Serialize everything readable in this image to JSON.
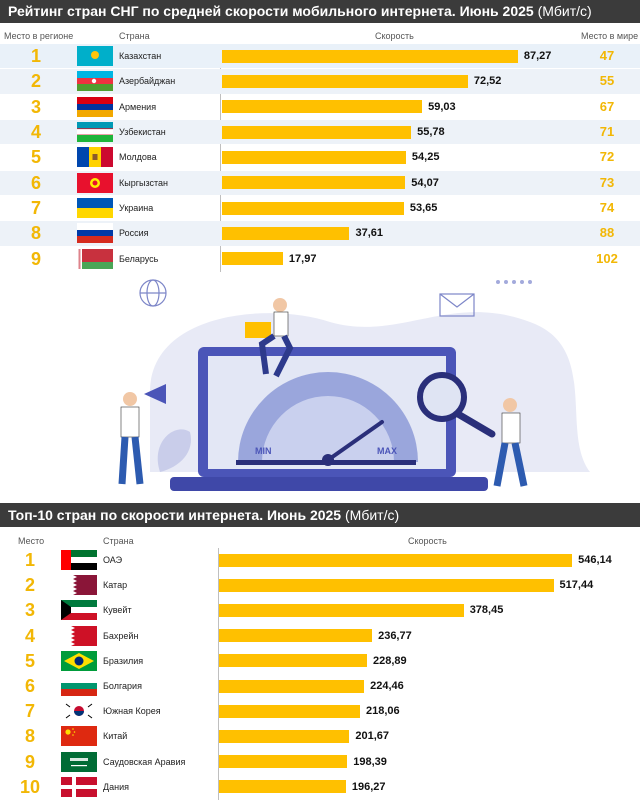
{
  "section1": {
    "title": "Рейтинг стран СНГ по средней скорости мобильного интернета. Июнь 2025",
    "unit": "(Мбит/с)",
    "headers": {
      "rank": "Место в регионе",
      "country": "Страна",
      "speed": "Скорость",
      "world": "Место в мире"
    }
  },
  "section2": {
    "title": "Топ-10 стран по скорости интернета. Июнь 2025",
    "unit": "(Мбит/с)",
    "headers": {
      "rank": "Место",
      "country": "Страна",
      "speed": "Скорость"
    }
  },
  "illustration": {
    "gauge_min": "MIN",
    "gauge_max": "MAX"
  },
  "colors": {
    "bar": "#ffc000",
    "rank": "#f2b705",
    "title_bg": "#3b3b3b"
  },
  "chart_data": [
    {
      "type": "bar",
      "title": "Рейтинг стран СНГ по средней скорости мобильного интернета. Июнь 2025 (Мбит/с)",
      "xlabel": "Скорость",
      "ylabel": "Страна",
      "xlim": [
        0,
        100
      ],
      "categories": [
        "Казахстан",
        "Азербайджан",
        "Армения",
        "Узбекистан",
        "Молдова",
        "Кыргызстан",
        "Украина",
        "Россия",
        "Беларусь"
      ],
      "ranks": [
        "1",
        "2",
        "3",
        "4",
        "5",
        "6",
        "7",
        "8",
        "9"
      ],
      "values": [
        87.27,
        72.52,
        59.03,
        55.78,
        54.25,
        54.07,
        53.65,
        37.61,
        17.97
      ],
      "labels": [
        "87,27",
        "72,52",
        "59,03",
        "55,78",
        "54,25",
        "54,07",
        "53,65",
        "37,61",
        "17,97"
      ],
      "world_rank": [
        "47",
        "55",
        "67",
        "71",
        "72",
        "73",
        "74",
        "88",
        "102"
      ],
      "flags": [
        "flag-kz",
        "flag-az",
        "flag-am",
        "flag-uz",
        "flag-md",
        "flag-kg",
        "flag-ua",
        "flag-ru",
        "flag-by"
      ]
    },
    {
      "type": "bar",
      "title": "Топ-10 стран по скорости интернета. Июнь 2025 (Мбит/с)",
      "xlabel": "Скорость",
      "ylabel": "Страна",
      "xlim": [
        0,
        580
      ],
      "categories": [
        "ОАЭ",
        "Катар",
        "Кувейт",
        "Бахрейн",
        "Бразилия",
        "Болгария",
        "Южная Корея",
        "Китай",
        "Саудовская Аравия",
        "Дания"
      ],
      "ranks": [
        "1",
        "2",
        "3",
        "4",
        "5",
        "6",
        "7",
        "8",
        "9",
        "10"
      ],
      "values": [
        546.14,
        517.44,
        378.45,
        236.77,
        228.89,
        224.46,
        218.06,
        201.67,
        198.39,
        196.27
      ],
      "labels": [
        "546,14",
        "517,44",
        "378,45",
        "236,77",
        "228,89",
        "224,46",
        "218,06",
        "201,67",
        "198,39",
        "196,27"
      ],
      "flags": [
        "flag-ae",
        "flag-qa",
        "flag-kw",
        "flag-bh",
        "flag-br",
        "flag-bg",
        "flag-kr",
        "flag-cn",
        "flag-sa",
        "flag-dk"
      ]
    }
  ]
}
